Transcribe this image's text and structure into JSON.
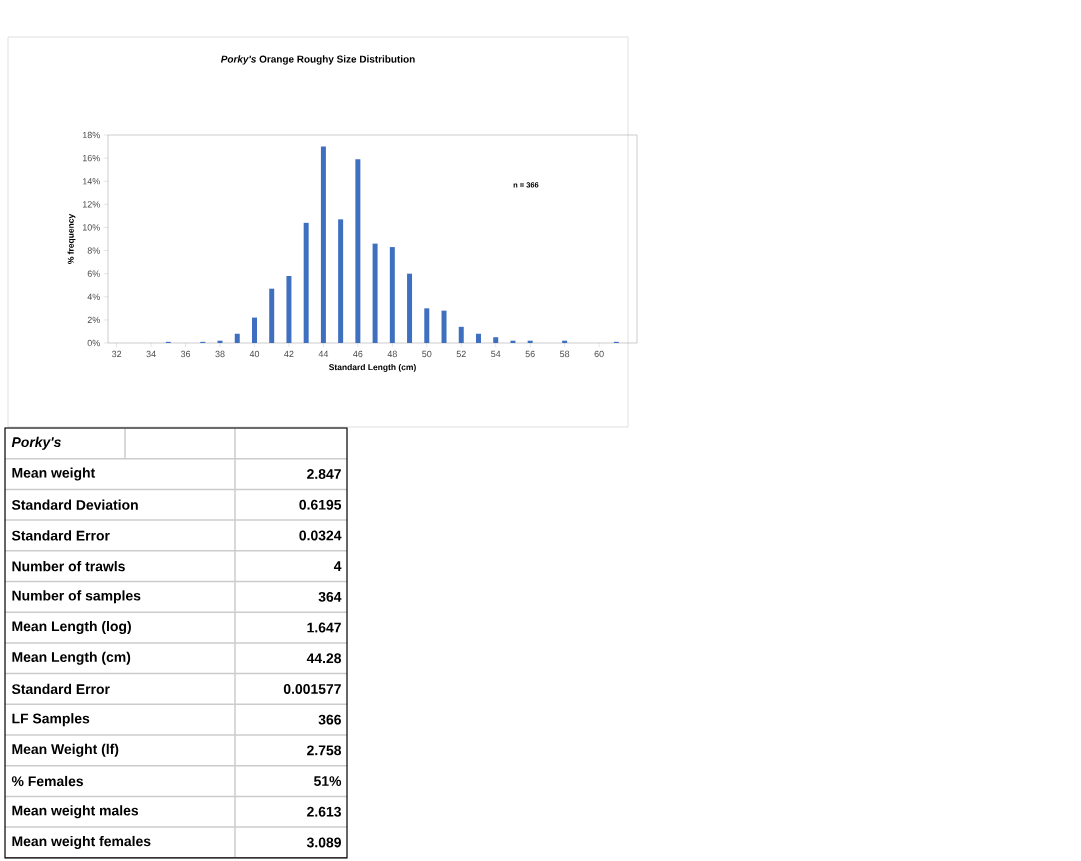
{
  "chart_data": {
    "type": "bar",
    "title": "*Porky's* Orange Roughy Size Distribution",
    "xlabel": "Standard Length (cm)",
    "ylabel": "% frequency",
    "x": [
      32,
      33,
      34,
      35,
      36,
      37,
      38,
      39,
      40,
      41,
      42,
      43,
      44,
      45,
      46,
      47,
      48,
      49,
      50,
      51,
      52,
      53,
      54,
      55,
      56,
      57,
      58,
      59,
      60,
      61
    ],
    "values": [
      0,
      0,
      0,
      0.1,
      0,
      0.1,
      0.2,
      0.8,
      2.2,
      4.7,
      5.8,
      10.4,
      17.0,
      10.7,
      15.9,
      8.6,
      8.3,
      6.0,
      3.0,
      2.8,
      1.4,
      0.8,
      0.5,
      0.2,
      0.2,
      0,
      0.2,
      0,
      0,
      0.1
    ],
    "color": "#3f6fbf",
    "xlim": [
      31.5,
      62.2
    ],
    "xticks": [
      32,
      34,
      36,
      38,
      40,
      42,
      44,
      46,
      48,
      50,
      52,
      54,
      56,
      58,
      60
    ],
    "ylim": [
      0,
      18
    ],
    "yticks": [
      {
        "value": 0,
        "label": "0%"
      },
      {
        "value": 2,
        "label": "2%"
      },
      {
        "value": 4,
        "label": "4%"
      },
      {
        "value": 6,
        "label": "6%"
      },
      {
        "value": 8,
        "label": "8%"
      },
      {
        "value": 10,
        "label": "10%"
      },
      {
        "value": 12,
        "label": "12%"
      },
      {
        "value": 14,
        "label": "14%"
      },
      {
        "value": 16,
        "label": "16%"
      },
      {
        "value": 18,
        "label": "18%"
      }
    ],
    "annotations": [
      "n =     366",
      "Porky's",
      "Mean weight",
      "2.847",
      "Standard Deviation",
      "0.6195",
      "Standard Error",
      "0.0324",
      "Number of trawls",
      "4",
      "Number of samples",
      "364",
      "Mean Length (log)",
      "1.647",
      "Mean Length (cm)",
      "44.28",
      "Standard Error",
      "0.001577",
      "LF Samples",
      "366",
      "Mean Weight (lf)",
      "2.758",
      "% Females",
      "51%",
      "Mean weight males",
      "2.613",
      "Mean weight females",
      "3.089"
    ]
  }
}
